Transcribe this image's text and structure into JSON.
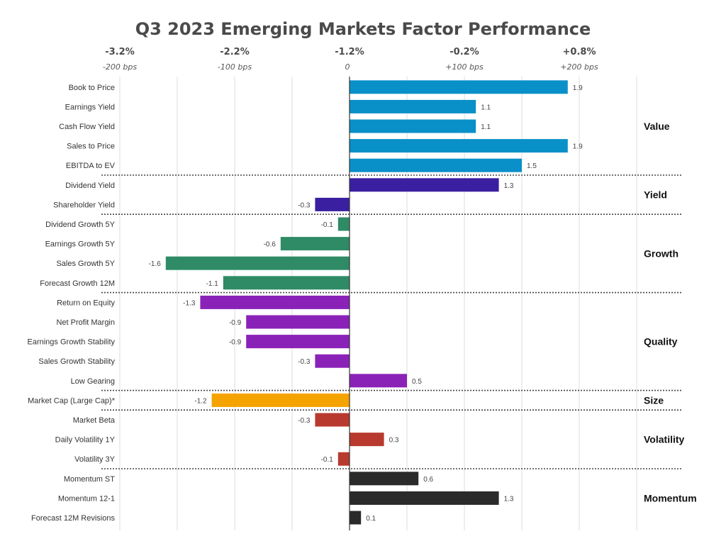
{
  "chart_data": {
    "type": "bar",
    "orientation": "horizontal",
    "title": "Q3 2023 Emerging Markets Factor Performance",
    "xlabel": "",
    "ylabel": "",
    "xlim": [
      -2.0,
      2.5
    ],
    "grid": true,
    "gridlines_x": [
      -2.0,
      -1.5,
      -1.0,
      -0.5,
      0,
      0.5,
      1.0,
      1.5,
      2.0,
      2.5
    ],
    "top_axis_ticks": [
      {
        "value": -2.0,
        "label": "-3.2%",
        "sublabel": "-200 bps"
      },
      {
        "value": -1.0,
        "label": "-2.2%",
        "sublabel": "-100 bps"
      },
      {
        "value": 0,
        "label": "-1.2%",
        "sublabel": "0"
      },
      {
        "value": 1.0,
        "label": "-0.2%",
        "sublabel": "+100 bps"
      },
      {
        "value": 2.0,
        "label": "+0.8%",
        "sublabel": "+200 bps"
      }
    ],
    "groups": [
      {
        "name": "Value",
        "color": "#0a90c8",
        "items": [
          {
            "label": "Book to Price",
            "value": 1.9,
            "value_label": "1.9"
          },
          {
            "label": "Earnings Yield",
            "value": 1.1,
            "value_label": "1.1"
          },
          {
            "label": "Cash Flow Yield",
            "value": 1.1,
            "value_label": "1.1"
          },
          {
            "label": "Sales to Price",
            "value": 1.9,
            "value_label": "1.9"
          },
          {
            "label": "EBITDA to EV",
            "value": 1.5,
            "value_label": "1.5"
          }
        ]
      },
      {
        "name": "Yield",
        "color": "#3a1fa0",
        "items": [
          {
            "label": "Dividend Yield",
            "value": 1.3,
            "value_label": "1.3"
          },
          {
            "label": "Shareholder Yield",
            "value": -0.3,
            "value_label": "-0.3"
          }
        ]
      },
      {
        "name": "Growth",
        "color": "#2e8b66",
        "items": [
          {
            "label": "Dividend Growth 5Y",
            "value": -0.1,
            "value_label": "-0.1"
          },
          {
            "label": "Earnings Growth 5Y",
            "value": -0.6,
            "value_label": "-0.6"
          },
          {
            "label": "Sales Growth 5Y",
            "value": -1.6,
            "value_label": "-1.6"
          },
          {
            "label": "Forecast Growth 12M",
            "value": -1.1,
            "value_label": "-1.1"
          }
        ]
      },
      {
        "name": "Quality",
        "color": "#8a22b8",
        "items": [
          {
            "label": "Return on Equity",
            "value": -1.3,
            "value_label": "-1.3"
          },
          {
            "label": "Net Profit Margin",
            "value": -0.9,
            "value_label": "-0.9"
          },
          {
            "label": "Earnings Growth Stability",
            "value": -0.9,
            "value_label": "-0.9"
          },
          {
            "label": "Sales Growth Stability",
            "value": -0.3,
            "value_label": "-0.3"
          },
          {
            "label": "Low Gearing",
            "value": 0.5,
            "value_label": "0.5"
          }
        ]
      },
      {
        "name": "Size",
        "color": "#f5a300",
        "items": [
          {
            "label": "Market Cap (Large Cap)*",
            "value": -1.2,
            "value_label": "-1.2"
          }
        ]
      },
      {
        "name": "Volatility",
        "color": "#b83a2e",
        "items": [
          {
            "label": "Market Beta",
            "value": -0.3,
            "value_label": "-0.3"
          },
          {
            "label": "Daily Volatility 1Y",
            "value": 0.3,
            "value_label": "0.3"
          },
          {
            "label": "Volatility 3Y",
            "value": -0.1,
            "value_label": "-0.1"
          }
        ]
      },
      {
        "name": "Momentum",
        "color": "#2a2a2a",
        "items": [
          {
            "label": "Momentum ST",
            "value": 0.6,
            "value_label": "0.6"
          },
          {
            "label": "Momentum 12-1",
            "value": 1.3,
            "value_label": "1.3"
          },
          {
            "label": "Forecast 12M Revisions",
            "value": 0.1,
            "value_label": "0.1"
          }
        ]
      }
    ]
  }
}
